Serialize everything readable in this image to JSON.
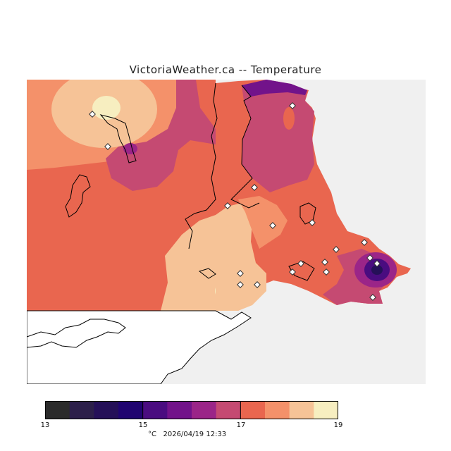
{
  "title": "VictoriaWeather.ca -- Temperature",
  "colorbar": {
    "min": 13,
    "max": 19,
    "tick_labels": [
      "13",
      "15",
      "17",
      "19"
    ],
    "colors": [
      "#2b2b2b",
      "#2c1f4a",
      "#251058",
      "#200470",
      "#4a0c80",
      "#72138a",
      "#9b2588",
      "#c54a72",
      "#e9664f",
      "#f4916a",
      "#f6c397",
      "#f7eec0"
    ]
  },
  "footer": {
    "unit": "°C",
    "timestamp": "2026/04/19 12:33"
  },
  "map_colors": {
    "land_no_data": "#ffffff",
    "water": "#f0f0f0",
    "coast": "#000000"
  }
}
